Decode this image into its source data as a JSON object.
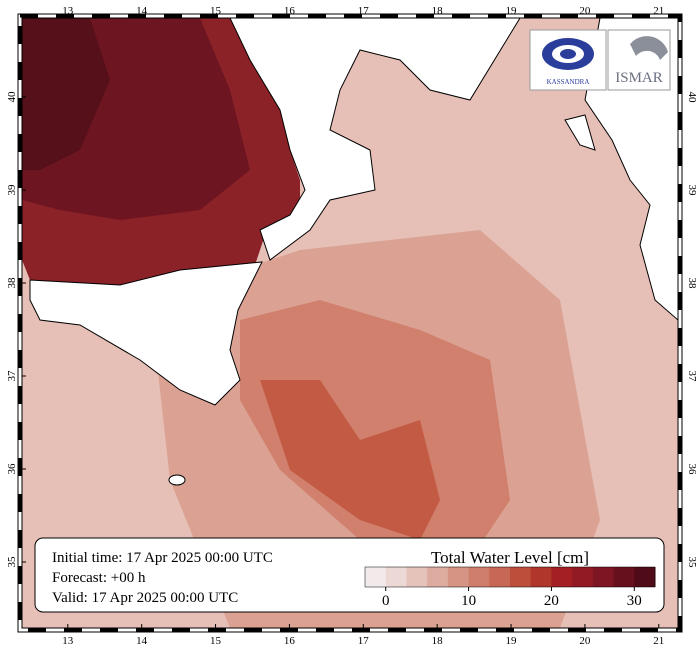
{
  "map": {
    "lon_lim": [
      12.38,
      21.26
    ],
    "lat_lim": [
      34.29,
      40.85
    ],
    "lon_ticks": [
      13,
      14,
      15,
      16,
      17,
      18,
      19,
      20,
      21
    ],
    "lat_ticks": [
      35,
      36,
      37,
      38,
      39,
      40
    ]
  },
  "info": {
    "initial": "Initial time: 17 Apr 2025 00:00 UTC",
    "forecast": "Forecast: +00 h",
    "valid": "Valid: 17 Apr 2025 00:00 UTC"
  },
  "colorbar": {
    "title": "Total Water Level [cm]",
    "lim": [
      -2.5,
      32.5
    ],
    "ticks": [
      0,
      10,
      20,
      30
    ],
    "colors": [
      "#f2eaea",
      "#ecd8d4",
      "#e5c3bb",
      "#ddaba0",
      "#d69485",
      "#cf7e6c",
      "#c76755",
      "#bd4e3b",
      "#b0352a",
      "#a31f24",
      "#921a24",
      "#7d1522",
      "#67101d",
      "#4f0b17"
    ]
  },
  "logos": {
    "left": "KASSANDRA",
    "right": "ISMAR"
  }
}
